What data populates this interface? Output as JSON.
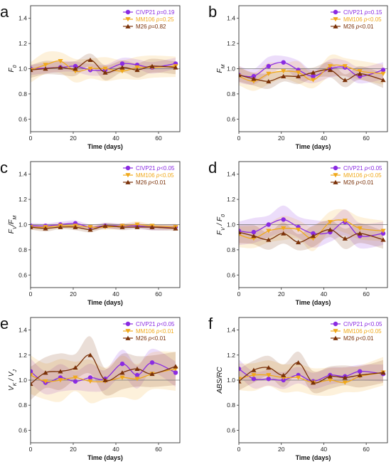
{
  "colors": {
    "CIVP21": "#8a2be2",
    "MM106": "#f0a91c",
    "M26": "#7a3108"
  },
  "chart_data": [
    {
      "type": "line",
      "panel": "a",
      "ylabel_html": [
        "F",
        "0"
      ],
      "ylabel_mode": "sub",
      "xlabel": "Time (days)",
      "xlim": [
        0,
        70
      ],
      "ylim": [
        0.5,
        1.5
      ],
      "xticks": [
        0,
        20,
        40,
        60
      ],
      "yticks": [
        0.6,
        0.8,
        1.0,
        1.2,
        1.4
      ],
      "legend": [
        {
          "name": "CIVP21",
          "stat": "p=0.19"
        },
        {
          "name": "MM106",
          "stat": "p=0.25"
        },
        {
          "name": "M26",
          "stat": "p=0.82"
        }
      ],
      "series": [
        {
          "name": "CIVP21",
          "marker": "circle",
          "x": [
            0,
            14,
            21,
            28,
            35,
            43,
            50,
            57,
            68
          ],
          "y": [
            1.0,
            1.01,
            1.02,
            0.99,
            0.99,
            1.04,
            1.03,
            1.01,
            1.04
          ],
          "band": 0.04
        },
        {
          "name": "MM106",
          "marker": "tri-down",
          "x": [
            0,
            7,
            14,
            21,
            28,
            35,
            43,
            50,
            57,
            68
          ],
          "y": [
            0.99,
            1.03,
            1.06,
            0.98,
            1.0,
            1.0,
            0.98,
            1.01,
            1.01,
            1.02
          ],
          "band": 0.08
        },
        {
          "name": "M26",
          "marker": "tri-up",
          "x": [
            0,
            7,
            14,
            21,
            28,
            35,
            43,
            50,
            57,
            68
          ],
          "y": [
            0.99,
            1.0,
            1.01,
            1.0,
            1.07,
            0.97,
            1.01,
            0.99,
            1.02,
            1.01
          ],
          "band": 0.05
        }
      ]
    },
    {
      "type": "line",
      "panel": "b",
      "ylabel_html": [
        "F",
        "M"
      ],
      "ylabel_mode": "sub",
      "xlabel": "Time (days)",
      "xlim": [
        0,
        70
      ],
      "ylim": [
        0.5,
        1.5
      ],
      "xticks": [
        0,
        20,
        40,
        60
      ],
      "yticks": [
        0.6,
        0.8,
        1.0,
        1.2,
        1.4
      ],
      "legend": [
        {
          "name": "CIVP21",
          "stat": "p=0.15"
        },
        {
          "name": "MM106",
          "stat": "p<0.05"
        },
        {
          "name": "M26",
          "stat": "p<0.01"
        }
      ],
      "series": [
        {
          "name": "CIVP21",
          "marker": "circle",
          "x": [
            0,
            7,
            14,
            21,
            28,
            35,
            43,
            50,
            57,
            68
          ],
          "y": [
            0.95,
            0.94,
            1.02,
            1.05,
            0.99,
            0.94,
            1.0,
            1.01,
            0.94,
            0.99
          ],
          "band": 0.06
        },
        {
          "name": "MM106",
          "marker": "tri-down",
          "x": [
            0,
            7,
            14,
            21,
            28,
            35,
            43,
            50,
            57,
            68
          ],
          "y": [
            0.94,
            0.9,
            0.96,
            0.98,
            0.97,
            0.91,
            1.02,
            1.02,
            0.98,
            0.96
          ],
          "band": 0.07
        },
        {
          "name": "M26",
          "marker": "tri-up",
          "x": [
            0,
            7,
            14,
            21,
            28,
            35,
            43,
            50,
            57,
            68
          ],
          "y": [
            0.95,
            0.92,
            0.9,
            0.94,
            0.94,
            0.97,
            0.99,
            0.91,
            0.96,
            0.91
          ],
          "band": 0.05
        }
      ]
    },
    {
      "type": "line",
      "panel": "c",
      "ylabel_html": [
        "F",
        "V",
        "/F",
        "M"
      ],
      "ylabel_mode": "fvfm",
      "xlabel": "Time (days)",
      "xlim": [
        0,
        70
      ],
      "ylim": [
        0.5,
        1.5
      ],
      "xticks": [
        0,
        20,
        40,
        60
      ],
      "yticks": [
        0.6,
        0.8,
        1.0,
        1.2,
        1.4
      ],
      "legend": [
        {
          "name": "CIVP21",
          "stat": "p<0.05"
        },
        {
          "name": "MM106",
          "stat": "p<0.05"
        },
        {
          "name": "M26",
          "stat": "p<0.01"
        }
      ],
      "series": [
        {
          "name": "CIVP21",
          "marker": "circle",
          "x": [
            0,
            7,
            14,
            21,
            28,
            35,
            43,
            50,
            57,
            68
          ],
          "y": [
            0.99,
            0.99,
            1.0,
            1.01,
            0.98,
            0.99,
            0.99,
            0.99,
            0.98,
            0.98
          ],
          "band": 0.02
        },
        {
          "name": "MM106",
          "marker": "tri-down",
          "x": [
            0,
            7,
            14,
            21,
            28,
            35,
            43,
            50,
            57,
            68
          ],
          "y": [
            0.98,
            0.98,
            0.99,
            0.99,
            0.98,
            0.98,
            0.99,
            1.0,
            0.99,
            0.98
          ],
          "band": 0.02
        },
        {
          "name": "M26",
          "marker": "tri-up",
          "x": [
            0,
            7,
            14,
            21,
            28,
            35,
            43,
            50,
            57,
            68
          ],
          "y": [
            0.98,
            0.97,
            0.98,
            0.98,
            0.96,
            0.99,
            0.98,
            0.98,
            0.98,
            0.97
          ],
          "band": 0.02
        }
      ]
    },
    {
      "type": "line",
      "panel": "d",
      "ylabel_html": [
        "F",
        "V",
        " / F",
        "0"
      ],
      "ylabel_mode": "fvfm",
      "xlabel": "Time (days)",
      "xlim": [
        0,
        70
      ],
      "ylim": [
        0.5,
        1.5
      ],
      "xticks": [
        0,
        20,
        40,
        60
      ],
      "yticks": [
        0.6,
        0.8,
        1.0,
        1.2,
        1.4
      ],
      "legend": [
        {
          "name": "CIVP21",
          "stat": "p<0.05"
        },
        {
          "name": "MM106",
          "stat": "p<0.05"
        },
        {
          "name": "M26",
          "stat": "p<0.01"
        }
      ],
      "series": [
        {
          "name": "CIVP21",
          "marker": "circle",
          "x": [
            0,
            7,
            14,
            21,
            28,
            35,
            43,
            50,
            57,
            68
          ],
          "y": [
            0.95,
            0.94,
            1.0,
            1.04,
            0.98,
            0.93,
            0.94,
            1.02,
            0.91,
            0.93
          ],
          "band": 0.09
        },
        {
          "name": "MM106",
          "marker": "tri-down",
          "x": [
            0,
            7,
            14,
            21,
            28,
            35,
            43,
            50,
            57,
            68
          ],
          "y": [
            0.92,
            0.89,
            0.95,
            0.97,
            0.96,
            0.89,
            1.02,
            1.03,
            0.97,
            0.95
          ],
          "band": 0.08
        },
        {
          "name": "M26",
          "marker": "tri-up",
          "x": [
            0,
            7,
            14,
            21,
            28,
            35,
            43,
            50,
            57,
            68
          ],
          "y": [
            0.94,
            0.91,
            0.88,
            0.93,
            0.86,
            0.91,
            0.96,
            0.89,
            0.93,
            0.88
          ],
          "band": 0.07
        }
      ]
    },
    {
      "type": "line",
      "panel": "e",
      "ylabel_html": [
        "V",
        "K",
        " / V",
        "J"
      ],
      "ylabel_mode": "fvfm",
      "xlabel": "Time (days)",
      "xlim": [
        0,
        70
      ],
      "ylim": [
        0.5,
        1.5
      ],
      "xticks": [
        0,
        20,
        40,
        60
      ],
      "yticks": [
        0.6,
        0.8,
        1.0,
        1.2,
        1.4
      ],
      "legend": [
        {
          "name": "CIVP21",
          "stat": "p<0.05"
        },
        {
          "name": "MM106",
          "stat": "p<0.01"
        },
        {
          "name": "M26",
          "stat": "p<0.01"
        }
      ],
      "series": [
        {
          "name": "CIVP21",
          "marker": "circle",
          "x": [
            0,
            7,
            14,
            21,
            28,
            35,
            43,
            50,
            57,
            68
          ],
          "y": [
            1.07,
            0.98,
            1.02,
            0.99,
            1.02,
            1.01,
            1.13,
            1.04,
            1.14,
            1.06
          ],
          "band": 0.09
        },
        {
          "name": "MM106",
          "marker": "tri-down",
          "x": [
            0,
            7,
            14,
            21,
            28,
            35,
            43,
            50,
            57,
            68
          ],
          "y": [
            1.04,
            0.99,
            1.0,
            1.02,
            0.99,
            0.99,
            1.02,
            1.01,
            1.05,
            1.09
          ],
          "band": 0.14
        },
        {
          "name": "M26",
          "marker": "tri-up",
          "x": [
            0,
            7,
            14,
            21,
            28,
            35,
            43,
            50,
            57,
            68
          ],
          "y": [
            0.97,
            1.06,
            1.07,
            1.1,
            1.2,
            1.0,
            1.06,
            1.09,
            1.05,
            1.11
          ],
          "band": 0.12
        }
      ]
    },
    {
      "type": "line",
      "panel": "f",
      "ylabel_html": [
        "ABS/RC"
      ],
      "ylabel_mode": "plain",
      "xlabel": "Time (days)",
      "xlim": [
        0,
        70
      ],
      "ylim": [
        0.5,
        1.5
      ],
      "xticks": [
        0,
        20,
        40,
        60
      ],
      "yticks": [
        0.6,
        0.8,
        1.0,
        1.2,
        1.4
      ],
      "legend": [
        {
          "name": "CIVP21",
          "stat": "p<0.05"
        },
        {
          "name": "MM106",
          "stat": "p<0.05"
        },
        {
          "name": "M26",
          "stat": "p<0.01"
        }
      ],
      "series": [
        {
          "name": "CIVP21",
          "marker": "circle",
          "x": [
            0,
            7,
            14,
            21,
            28,
            35,
            43,
            50,
            57,
            68
          ],
          "y": [
            1.09,
            1.01,
            1.01,
            1.0,
            1.04,
            0.99,
            1.04,
            1.03,
            1.07,
            1.05
          ],
          "band": 0.06
        },
        {
          "name": "MM106",
          "marker": "tri-down",
          "x": [
            0,
            7,
            14,
            21,
            28,
            35,
            43,
            50,
            57,
            68
          ],
          "y": [
            1.01,
            1.04,
            1.04,
            1.02,
            1.02,
            0.98,
            1.0,
            0.98,
            1.03,
            1.06
          ],
          "band": 0.1
        },
        {
          "name": "M26",
          "marker": "tri-up",
          "x": [
            0,
            7,
            14,
            21,
            28,
            35,
            43,
            50,
            57,
            68
          ],
          "y": [
            0.99,
            1.08,
            1.1,
            1.04,
            1.14,
            0.98,
            1.03,
            1.02,
            1.04,
            1.06
          ],
          "band": 0.08
        }
      ]
    }
  ]
}
